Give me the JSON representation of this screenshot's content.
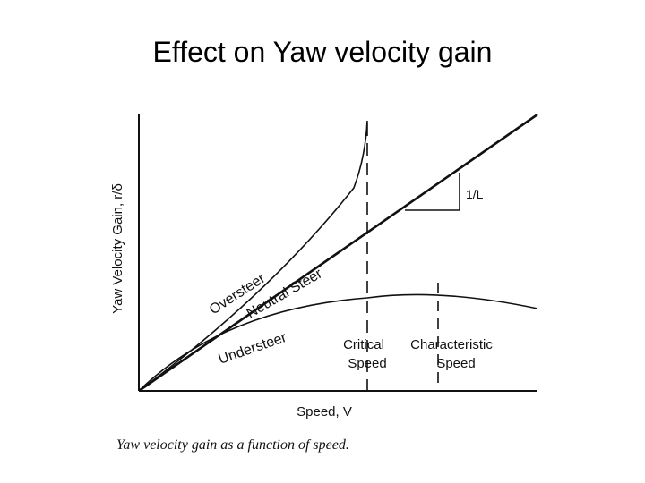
{
  "slide": {
    "title": "Effect on Yaw velocity gain"
  },
  "figure": {
    "y_axis_label": "Yaw Velocity Gain, r/δ",
    "x_axis_label": "Speed, V",
    "curves": {
      "oversteer": "Oversteer",
      "neutral": "Neutral Steer",
      "understeer": "Understeer"
    },
    "slope_label": "1/L",
    "critical_speed": [
      "Critical",
      "Speed"
    ],
    "characteristic_speed": [
      "Characteristic",
      "Speed"
    ],
    "caption": "Yaw velocity gain as a function of speed.",
    "colors": {
      "ink": "#111111",
      "background": "#ffffff"
    }
  }
}
